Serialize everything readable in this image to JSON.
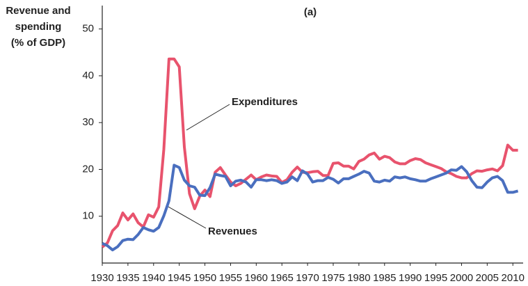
{
  "chart_data": {
    "type": "line",
    "title": "(a)",
    "y_label": [
      "Revenue and",
      "spending",
      "(% of GDP)"
    ],
    "annotations": [
      "Expenditures",
      "Revenues"
    ],
    "x": [
      1930,
      1931,
      1932,
      1933,
      1934,
      1935,
      1936,
      1937,
      1938,
      1939,
      1940,
      1941,
      1942,
      1943,
      1944,
      1945,
      1946,
      1947,
      1948,
      1949,
      1950,
      1951,
      1952,
      1953,
      1954,
      1955,
      1956,
      1957,
      1958,
      1959,
      1960,
      1961,
      1962,
      1963,
      1964,
      1965,
      1966,
      1967,
      1968,
      1969,
      1970,
      1971,
      1972,
      1973,
      1974,
      1975,
      1976,
      1977,
      1978,
      1979,
      1980,
      1981,
      1982,
      1983,
      1984,
      1985,
      1986,
      1987,
      1988,
      1989,
      1990,
      1991,
      1992,
      1993,
      1994,
      1995,
      1996,
      1997,
      1998,
      1999,
      2000,
      2001,
      2002,
      2003,
      2004,
      2005,
      2006,
      2007,
      2008,
      2009,
      2010,
      2011
    ],
    "series": [
      {
        "name": "Expenditures",
        "color": "#e8536d",
        "values": [
          3.4,
          4.3,
          6.9,
          8.0,
          10.7,
          9.2,
          10.5,
          8.6,
          7.7,
          10.3,
          9.8,
          12.0,
          24.3,
          43.6,
          43.6,
          41.9,
          24.8,
          14.8,
          11.6,
          14.3,
          15.6,
          14.2,
          19.4,
          20.4,
          18.8,
          17.3,
          16.5,
          17.0,
          17.9,
          18.8,
          17.8,
          18.4,
          18.8,
          18.6,
          18.5,
          17.2,
          17.8,
          19.4,
          20.5,
          19.4,
          19.3,
          19.5,
          19.6,
          18.7,
          18.7,
          21.3,
          21.4,
          20.7,
          20.7,
          20.1,
          21.7,
          22.2,
          23.1,
          23.5,
          22.2,
          22.8,
          22.5,
          21.6,
          21.2,
          21.2,
          21.9,
          22.3,
          22.1,
          21.4,
          21.0,
          20.6,
          20.2,
          19.5,
          19.1,
          18.5,
          18.2,
          18.2,
          19.1,
          19.7,
          19.6,
          19.9,
          20.1,
          19.7,
          20.8,
          25.2,
          24.1,
          24.1
        ]
      },
      {
        "name": "Revenues",
        "color": "#4a6fbf",
        "values": [
          4.2,
          3.7,
          2.8,
          3.5,
          4.8,
          5.1,
          5.0,
          6.1,
          7.6,
          7.1,
          6.8,
          7.6,
          10.1,
          13.3,
          20.9,
          20.4,
          17.7,
          16.5,
          16.2,
          14.5,
          14.4,
          16.1,
          19.0,
          18.7,
          18.5,
          16.5,
          17.5,
          17.7,
          17.3,
          16.2,
          17.8,
          17.8,
          17.6,
          17.8,
          17.6,
          17.0,
          17.3,
          18.4,
          17.6,
          19.7,
          19.0,
          17.3,
          17.6,
          17.6,
          18.3,
          17.9,
          17.1,
          18.0,
          18.0,
          18.5,
          19.0,
          19.6,
          19.2,
          17.5,
          17.3,
          17.7,
          17.5,
          18.4,
          18.2,
          18.4,
          18.0,
          17.8,
          17.5,
          17.5,
          18.0,
          18.4,
          18.8,
          19.2,
          19.9,
          19.8,
          20.6,
          19.5,
          17.6,
          16.2,
          16.1,
          17.3,
          18.2,
          18.5,
          17.6,
          15.1,
          15.1,
          15.4
        ]
      }
    ],
    "xlim": [
      1930,
      2012
    ],
    "xticks": [
      1930,
      1935,
      1940,
      1945,
      1950,
      1955,
      1960,
      1965,
      1970,
      1975,
      1980,
      1985,
      1990,
      1995,
      2000,
      2005,
      2010
    ],
    "ylim": [
      0,
      55
    ],
    "yticks": [
      10,
      20,
      30,
      40,
      50
    ]
  }
}
